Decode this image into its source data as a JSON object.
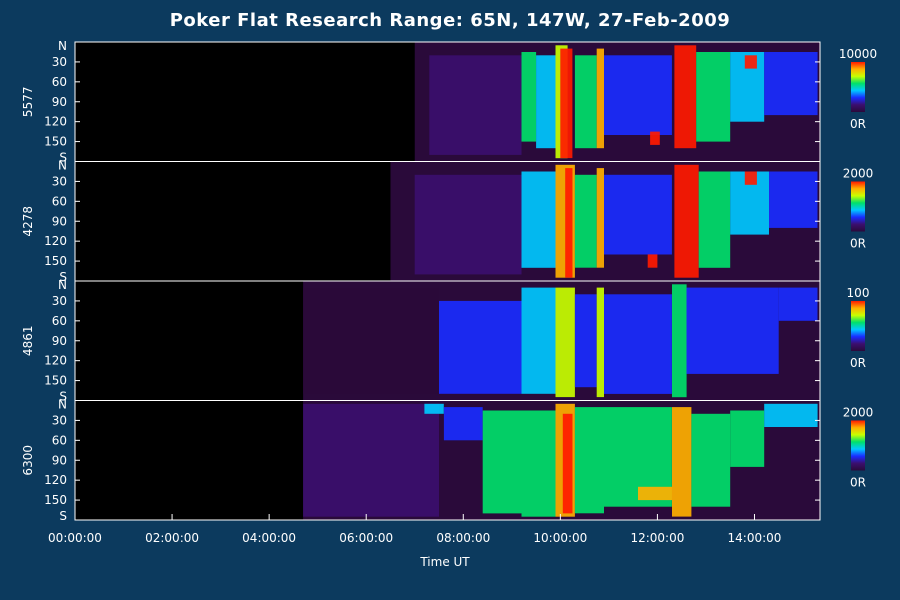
{
  "chart_data": {
    "type": "heatmap",
    "title": "Poker Flat Research Range: 65N, 147W, 27-Feb-2009",
    "xlabel": "Time UT",
    "x_ticks": [
      "00:00:00",
      "02:00:00",
      "04:00:00",
      "06:00:00",
      "08:00:00",
      "10:00:00",
      "12:00:00",
      "14:00:00"
    ],
    "x_tick_hours": [
      0,
      2,
      4,
      6,
      8,
      10,
      12,
      14
    ],
    "xlim_hours": [
      0,
      15.35
    ],
    "y_ticks": [
      "N",
      "30",
      "60",
      "90",
      "120",
      "150",
      "S"
    ],
    "y_tick_values": [
      0,
      30,
      60,
      90,
      120,
      150,
      180
    ],
    "ylim": [
      0,
      180
    ],
    "colormap": [
      "#2a0a3a",
      "#3b0f6e",
      "#1a2cff",
      "#00c8ff",
      "#00e06a",
      "#c8ff00",
      "#ffb000",
      "#ff1a00"
    ],
    "panels": [
      {
        "label": "5577",
        "cbar_max": "10000",
        "cbar_min": "0R",
        "data_start_hour": 7.0,
        "events": [
          {
            "t0": 7.3,
            "t1": 9.2,
            "lat0": 20,
            "lat1": 170,
            "level": 0.15
          },
          {
            "t0": 9.2,
            "t1": 9.5,
            "lat0": 15,
            "lat1": 150,
            "level": 0.55
          },
          {
            "t0": 9.5,
            "t1": 9.9,
            "lat0": 20,
            "lat1": 160,
            "level": 0.45
          },
          {
            "t0": 9.9,
            "t1": 10.15,
            "lat0": 5,
            "lat1": 175,
            "level": 0.75
          },
          {
            "t0": 10.0,
            "t1": 10.25,
            "lat0": 10,
            "lat1": 175,
            "level": 0.95
          },
          {
            "t0": 10.3,
            "t1": 10.75,
            "lat0": 20,
            "lat1": 160,
            "level": 0.5
          },
          {
            "t0": 10.75,
            "t1": 10.9,
            "lat0": 10,
            "lat1": 160,
            "level": 0.85
          },
          {
            "t0": 10.9,
            "t1": 12.3,
            "lat0": 20,
            "lat1": 140,
            "level": 0.3
          },
          {
            "t0": 11.85,
            "t1": 12.05,
            "lat0": 135,
            "lat1": 155,
            "level": 0.95
          },
          {
            "t0": 12.35,
            "t1": 12.8,
            "lat0": 5,
            "lat1": 160,
            "level": 0.98
          },
          {
            "t0": 12.8,
            "t1": 13.5,
            "lat0": 15,
            "lat1": 150,
            "level": 0.55
          },
          {
            "t0": 13.5,
            "t1": 14.2,
            "lat0": 15,
            "lat1": 120,
            "level": 0.45
          },
          {
            "t0": 13.8,
            "t1": 14.05,
            "lat0": 20,
            "lat1": 40,
            "level": 0.95
          },
          {
            "t0": 14.2,
            "t1": 15.3,
            "lat0": 15,
            "lat1": 110,
            "level": 0.35
          }
        ]
      },
      {
        "label": "4278",
        "cbar_max": "2000",
        "cbar_min": "0R",
        "data_start_hour": 6.5,
        "events": [
          {
            "t0": 7.0,
            "t1": 9.2,
            "lat0": 20,
            "lat1": 170,
            "level": 0.12
          },
          {
            "t0": 9.2,
            "t1": 9.9,
            "lat0": 15,
            "lat1": 160,
            "level": 0.45
          },
          {
            "t0": 9.9,
            "t1": 10.3,
            "lat0": 5,
            "lat1": 175,
            "level": 0.8
          },
          {
            "t0": 10.1,
            "t1": 10.25,
            "lat0": 10,
            "lat1": 175,
            "level": 0.98
          },
          {
            "t0": 10.3,
            "t1": 10.75,
            "lat0": 20,
            "lat1": 160,
            "level": 0.5
          },
          {
            "t0": 10.75,
            "t1": 10.9,
            "lat0": 10,
            "lat1": 160,
            "level": 0.85
          },
          {
            "t0": 10.9,
            "t1": 12.3,
            "lat0": 20,
            "lat1": 140,
            "level": 0.28
          },
          {
            "t0": 11.8,
            "t1": 12.0,
            "lat0": 140,
            "lat1": 160,
            "level": 0.95
          },
          {
            "t0": 12.35,
            "t1": 12.85,
            "lat0": 5,
            "lat1": 175,
            "level": 0.99
          },
          {
            "t0": 12.85,
            "t1": 13.5,
            "lat0": 15,
            "lat1": 160,
            "level": 0.55
          },
          {
            "t0": 13.5,
            "t1": 14.3,
            "lat0": 15,
            "lat1": 110,
            "level": 0.45
          },
          {
            "t0": 13.8,
            "t1": 14.05,
            "lat0": 15,
            "lat1": 35,
            "level": 0.95
          },
          {
            "t0": 14.3,
            "t1": 15.3,
            "lat0": 15,
            "lat1": 100,
            "level": 0.3
          }
        ]
      },
      {
        "label": "4861",
        "cbar_max": "100",
        "cbar_min": "0R",
        "data_start_hour": 4.7,
        "events": [
          {
            "t0": 4.7,
            "t1": 7.5,
            "lat0": 10,
            "lat1": 170,
            "level": 0.06
          },
          {
            "t0": 7.5,
            "t1": 9.2,
            "lat0": 30,
            "lat1": 170,
            "level": 0.3
          },
          {
            "t0": 9.2,
            "t1": 9.9,
            "lat0": 10,
            "lat1": 170,
            "level": 0.4
          },
          {
            "t0": 9.9,
            "t1": 10.3,
            "lat0": 10,
            "lat1": 175,
            "level": 0.65
          },
          {
            "t0": 10.3,
            "t1": 10.75,
            "lat0": 20,
            "lat1": 160,
            "level": 0.3
          },
          {
            "t0": 10.75,
            "t1": 10.9,
            "lat0": 10,
            "lat1": 175,
            "level": 0.75
          },
          {
            "t0": 10.9,
            "t1": 12.3,
            "lat0": 20,
            "lat1": 170,
            "level": 0.25
          },
          {
            "t0": 12.3,
            "t1": 12.6,
            "lat0": 5,
            "lat1": 175,
            "level": 0.6
          },
          {
            "t0": 12.6,
            "t1": 14.5,
            "lat0": 10,
            "lat1": 140,
            "level": 0.25
          },
          {
            "t0": 14.5,
            "t1": 15.3,
            "lat0": 10,
            "lat1": 60,
            "level": 0.22
          }
        ]
      },
      {
        "label": "6300",
        "cbar_max": "2000",
        "cbar_min": "0R",
        "data_start_hour": 4.7,
        "events": [
          {
            "t0": 4.7,
            "t1": 7.5,
            "lat0": 5,
            "lat1": 175,
            "level": 0.08
          },
          {
            "t0": 7.2,
            "t1": 7.6,
            "lat0": 5,
            "lat1": 20,
            "level": 0.45
          },
          {
            "t0": 7.6,
            "t1": 8.4,
            "lat0": 10,
            "lat1": 60,
            "level": 0.3
          },
          {
            "t0": 8.4,
            "t1": 9.2,
            "lat0": 15,
            "lat1": 170,
            "level": 0.6
          },
          {
            "t0": 9.2,
            "t1": 9.9,
            "lat0": 15,
            "lat1": 175,
            "level": 0.6
          },
          {
            "t0": 9.9,
            "t1": 10.3,
            "lat0": 5,
            "lat1": 175,
            "level": 0.85
          },
          {
            "t0": 10.05,
            "t1": 10.25,
            "lat0": 20,
            "lat1": 170,
            "level": 0.99
          },
          {
            "t0": 10.3,
            "t1": 10.9,
            "lat0": 10,
            "lat1": 170,
            "level": 0.55
          },
          {
            "t0": 10.9,
            "t1": 12.3,
            "lat0": 10,
            "lat1": 160,
            "level": 0.5
          },
          {
            "t0": 11.6,
            "t1": 12.3,
            "lat0": 130,
            "lat1": 150,
            "level": 0.9
          },
          {
            "t0": 12.3,
            "t1": 12.7,
            "lat0": 10,
            "lat1": 175,
            "level": 0.85
          },
          {
            "t0": 12.7,
            "t1": 13.5,
            "lat0": 20,
            "lat1": 160,
            "level": 0.55
          },
          {
            "t0": 13.5,
            "t1": 14.2,
            "lat0": 15,
            "lat1": 100,
            "level": 0.5
          },
          {
            "t0": 14.2,
            "t1": 15.3,
            "lat0": 5,
            "lat1": 40,
            "level": 0.45
          }
        ]
      }
    ]
  }
}
